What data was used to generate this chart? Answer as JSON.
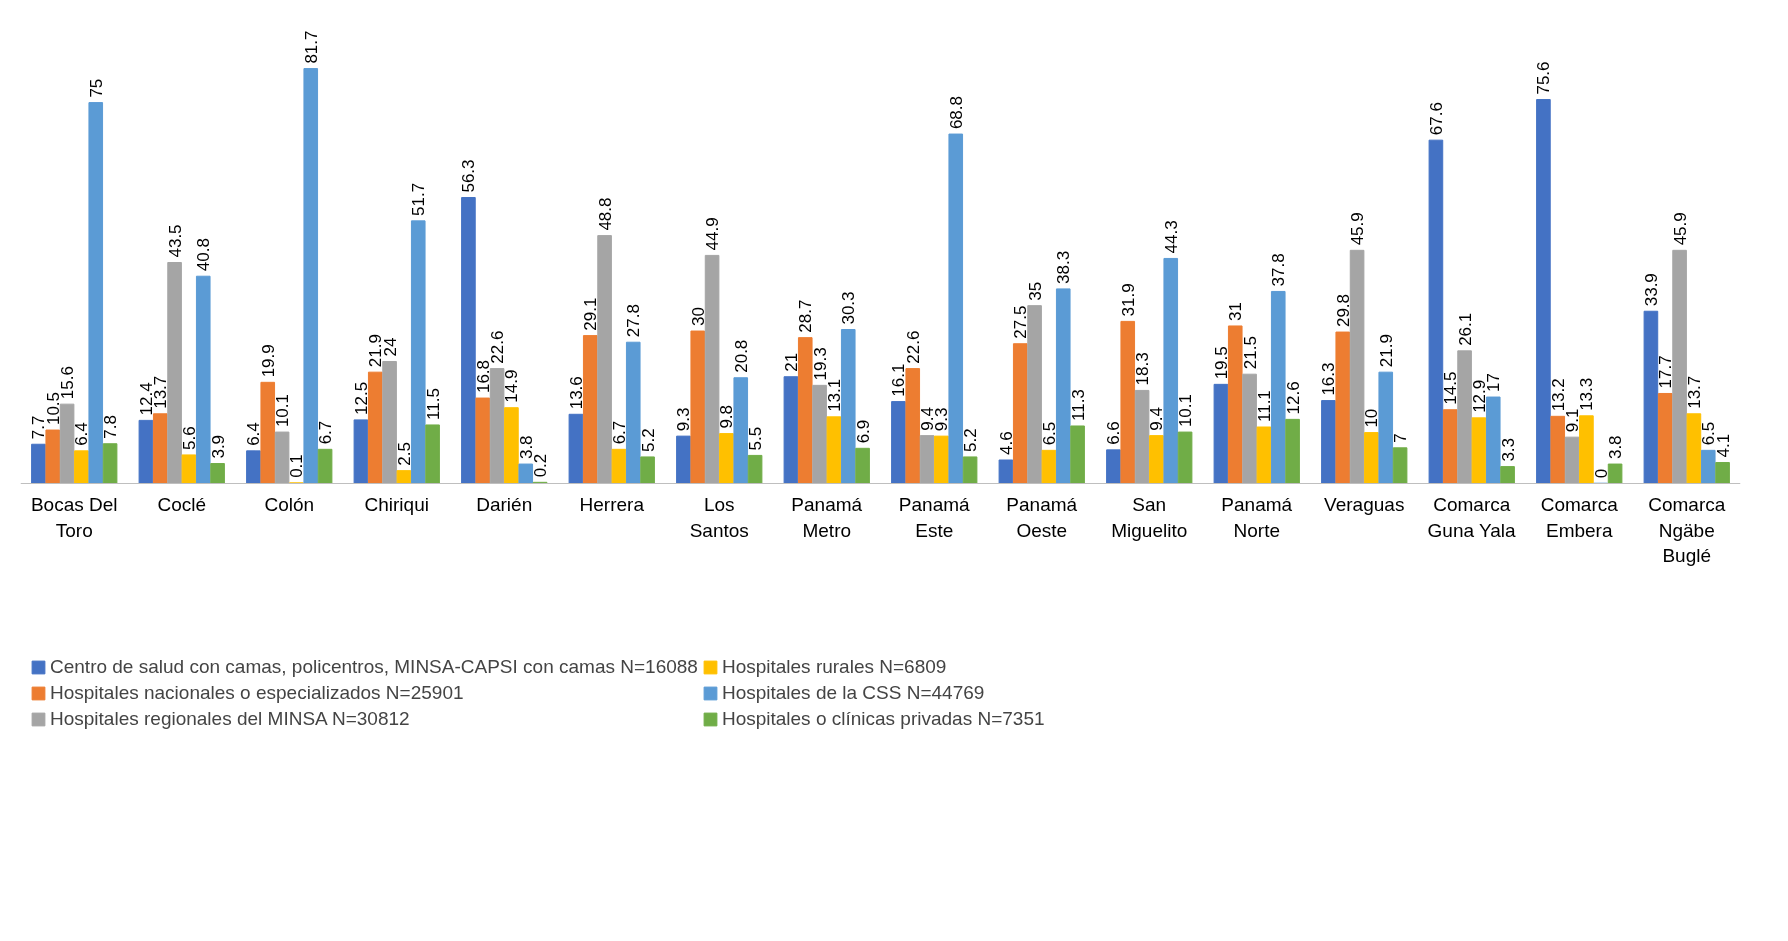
{
  "chart_data": {
    "type": "bar",
    "data_labels": true,
    "legend": "bottom",
    "grid": false,
    "categories": [
      "Bocas Del Toro",
      "Coclé",
      "Colón",
      "Chiriqui",
      "Darién",
      "Herrera",
      "Los Santos",
      "Panamá Metro",
      "Panamá Este",
      "Panamá Oeste",
      "San Miguelito",
      "Panamá Norte",
      "Veraguas",
      "Comarca Guna Yala",
      "Comarca Embera",
      "Comarca Ngäbe Buglé"
    ],
    "series": [
      {
        "name": "Centro de salud con camas, policentros, MINSA-CAPSI con camas N=16088",
        "color": "#4472c4",
        "values": [
          7.7,
          12.4,
          6.4,
          12.5,
          56.3,
          13.6,
          9.3,
          21,
          16.1,
          4.6,
          6.6,
          19.5,
          16.3,
          67.6,
          75.6,
          33.9
        ]
      },
      {
        "name": "Hospitales nacionales o especializados N=25901",
        "color": "#ed7d31",
        "values": [
          10.5,
          13.7,
          19.9,
          21.9,
          16.8,
          29.1,
          30,
          28.7,
          22.6,
          27.5,
          31.9,
          31,
          29.8,
          14.5,
          13.2,
          17.7
        ]
      },
      {
        "name": "Hospitales regionales del MINSA N=30812",
        "color": "#a5a5a5",
        "values": [
          15.6,
          43.5,
          10.1,
          24,
          22.6,
          48.8,
          44.9,
          19.3,
          9.4,
          35,
          18.3,
          21.5,
          45.9,
          26.1,
          9.1,
          45.9
        ]
      },
      {
        "name": "Hospitales rurales N=6809",
        "color": "#ffc000",
        "values": [
          6.4,
          5.6,
          0.1,
          2.5,
          14.9,
          6.7,
          9.8,
          13.1,
          9.3,
          6.5,
          9.4,
          11.1,
          10,
          12.9,
          13.3,
          13.7
        ]
      },
      {
        "name": "Hospitales de la CSS N=44769",
        "color": "#5b9bd5",
        "values": [
          75,
          40.8,
          81.7,
          51.7,
          3.8,
          27.8,
          20.8,
          30.3,
          68.8,
          38.3,
          44.3,
          37.8,
          21.9,
          17,
          0,
          6.5
        ]
      },
      {
        "name": "Hospitales o clínicas privadas N=7351",
        "color": "#70ad47",
        "values": [
          7.8,
          3.9,
          6.7,
          11.5,
          0.2,
          5.2,
          5.5,
          6.9,
          5.2,
          11.3,
          10.1,
          12.6,
          7,
          3.3,
          3.8,
          4.1
        ]
      }
    ]
  }
}
